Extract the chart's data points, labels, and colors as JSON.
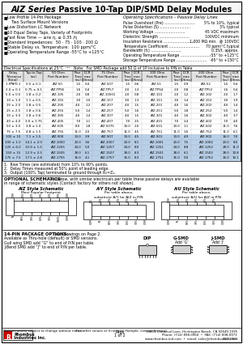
{
  "title_italic": "AIZ Series",
  "title_rest": " Passive 10-Tap DIP/SMD Delay Modules",
  "features": [
    "Low Profile 14-Pin Package",
    "  Two Surface Mount Versions",
    "Low Distortion LC Network",
    "10 Equal Delay Taps, Variety of Footprints",
    "Fast Rise Time — ≤ns η, ≤ 0.35 /η",
    "Standard Impedances:  50 · 75 · 100 · 200 Ω",
    "Stable Delay vs. Temperature:  100 ppm/°C",
    "Operating Temperature Range -55°C to +125°C"
  ],
  "feature_sub": [
    false,
    true,
    false,
    false,
    false,
    false,
    false,
    false
  ],
  "op_specs_title": "Operating Specifications – Passive Delay Lines",
  "op_specs": [
    [
      "Pulse Overshoot (Pre) ",
      "5% to 10%, typical"
    ],
    [
      "Pulse Distortion (S) ",
      "3% typical"
    ],
    [
      "Working Voltage ",
      "45 VDC maximum"
    ],
    [
      "Dielectric Strength ",
      "100VDC minimum"
    ],
    [
      "Insulation Resistance ",
      "1,000 MΩ min.  @ 100VDC"
    ],
    [
      "Temperature Coefficient ",
      "70 ppm/°C typical"
    ],
    [
      "Bandwidth (f₂) ",
      "0.35/t, approx."
    ],
    [
      "Operating Temperature Range ",
      "-55° to +125°C"
    ],
    [
      "Storage Temperature Range ",
      "-65° to +150°C"
    ]
  ],
  "elec_spec_note": "Electrical Specifications at 25°C  ¹²³   Note:  For SMD Package add 50 Ω of 1P inclusive to P/N in Table",
  "col_headers": [
    "Delay\nTolerance\n(Total)\n(ns)",
    "Tap-to-Tap\n(ns)",
    "50 Ohm\nPart Number",
    "Rise\nTime\n(ns)",
    "DCR\nmax\n(Ohms)",
    "75 Ohm\nPart Number",
    "Rise\nTime\n(ns)",
    "DCR\nmax\n(Ohms)",
    "100 Ohm\nPart Number",
    "Rise\nTime\n(ns)",
    "DCR\nmax\n(Ohms)",
    "200 Ohm\nPart Number",
    "Rise\nTime\n(ns)",
    "DCR\nmax\n(Ohms)"
  ],
  "table_rows": [
    [
      "1.0 ± 0.1",
      "0.5 ± 0.1",
      "AIZ-50",
      "1.5",
      "0.4",
      "AIZ-507",
      "1.5",
      "0.6",
      "AIZ-51",
      "1.5",
      "0.9",
      "AIZ-52",
      "1.5",
      "0.4"
    ],
    [
      "2.0 ± 0.1",
      "0.75 ± 0.1",
      "AIZ-TPS5",
      "1.6",
      "0.4",
      "AIZ-TP57",
      "2.0",
      "1.3",
      "AIZ-TPS4",
      "2.0",
      "0.8",
      "AIZ-TP52",
      "1.6",
      "0.4"
    ],
    [
      "5.0 ± 0.5",
      "1.8 ± 0.2",
      "AIZ-105",
      "2.0",
      "0.8",
      "AIZ-10501",
      "2.0",
      "0.8",
      "AIZ-101",
      "2.0",
      "1.2",
      "AIZ-102",
      "2.0",
      "1.7"
    ],
    [
      "10 ± 1.0",
      "1.1 ± 0.5",
      "AIZ-155",
      "3.0",
      "1.0",
      "AIZ-157",
      "3.0",
      "1.3",
      "AIZ-151",
      "3.0",
      "1.4",
      "AIZ-152",
      "3.0",
      "1.9"
    ],
    [
      "20 ± 2.0",
      "1.8 ± 0.5",
      "AIZ-205",
      "4.0",
      "1.2",
      "AIZ-207",
      "4.0",
      "1.5",
      "AIZ-201",
      "4.0",
      "1.6",
      "AIZ-202",
      "4.0",
      "1.4"
    ],
    [
      "25 ± 2.5",
      "1.8 ± 0.6",
      "AIZ-255",
      "5.0",
      "1.4",
      "AIZ-257",
      "5.0",
      "1.6",
      "AIZ-251",
      "5.0",
      "1.8",
      "AIZ-252",
      "5.0",
      "1.4"
    ],
    [
      "30 ± 3.0",
      "1.8 ± 0.6",
      "AIZ-305",
      "4.0",
      "1.4",
      "AIZ-307",
      "4.0",
      "1.5",
      "AIZ-301",
      "4.0",
      "1.6",
      "AIZ-302",
      "4.0",
      "3.7"
    ],
    [
      "40 ± 4.0",
      "3.0 ± 1.75",
      "AIZ-405",
      "7.0",
      "1.1",
      "AIZ-407",
      "7.0",
      "2.5",
      "AIZ-401",
      "7.0",
      "2.4",
      "AIZ-402",
      "7.0",
      "4.0"
    ],
    [
      "50 ± 3.0",
      "3.8 ± 1.0",
      "AIZ-505",
      "8.0",
      "1.8",
      "AIZ-5075",
      "10.0",
      "2.0",
      "AIZ-501",
      "10.0",
      "1.1",
      "AIZ-502",
      "11.0",
      "7.6"
    ],
    [
      "75 ± 7.5",
      "4.8 ± 1.5",
      "AIZ-755",
      "11.0",
      "2.0",
      "AIZ-757",
      "11.0",
      "4.5",
      "AIZ-751",
      "11.0",
      "1.6",
      "AIZ-752",
      "11.0",
      "6.1"
    ],
    [
      "100 ± 10",
      "7.1 ± 1.5",
      "AIZ-900",
      "13.0",
      "3.9",
      "AIZ-907",
      "13.0",
      "4.5",
      "AIZ-901",
      "13.0",
      "4.9",
      "AIZ-902",
      "16.0",
      "7.0"
    ],
    [
      "100 ± 1.0",
      "14.1 ± 2.0",
      "AIZ-1000",
      "20.0",
      "3.6",
      "AIZ-1007",
      "20.0",
      "8.1",
      "AIZ-1001",
      "20.0",
      "7.5",
      "AIZ-1002",
      "20.0",
      "8.0"
    ],
    [
      "125 ± 6.0",
      "10.9 ± 1.5",
      "AIZ-1255",
      "24.0",
      "5.0",
      "AIZ-1257",
      "24.0",
      "8.0",
      "AIZ-1251",
      "24.0",
      "8.8",
      "AIZ-1252",
      "28.0",
      "11.0"
    ],
    [
      "150 ± 15",
      "12.9 ± 2.5",
      "AIZ-1505",
      "28.0",
      "6.1",
      "AIZ-1507",
      "28.0",
      "8.3",
      "AIZ-1501",
      "28.0",
      "6.1",
      "AIZ-1502",
      "28.0",
      "10.8"
    ],
    [
      "175 ± 7.5",
      "17.5 ± 2.8",
      "AIZ-1755",
      "35.0",
      "4.1",
      "AIZ-1757",
      "35.0",
      "8.3",
      "AIZ-1751",
      "35.0",
      "0.0",
      "AIZ-1752",
      "35.0",
      "10.1"
    ]
  ],
  "highlight_rows": [
    10,
    11,
    12,
    13,
    14
  ],
  "highlight_color": "#b8d0e8",
  "table_footnotes": [
    "1.  Rise Times (are estimated) from 10% to 90% points.",
    "2.  Delay Times measured at 50% point of leading edge.",
    "3.  Output (100% Tap) terminated to ground through R₂=Zₒ."
  ],
  "opt_schematic_bold": "OPTIONAL SCHEMATICS:",
  "opt_schematic_rest": "  As below, with similar electricals per table these passive delays are available",
  "opt_schematic_line2": "in range of schematic styles (Contact factory for others not shown).",
  "sch_titles": [
    [
      "AIZ Style Schematic",
      "Most Popular Footprint"
    ],
    [
      "A/Y Style Schematic",
      "Per table above,",
      "substitute A/Y for AIZ in P/N"
    ],
    [
      "A/U Style Schematic",
      "Per table above,",
      "substitute A/U for AIZ in P/N"
    ]
  ],
  "sch_top_labels": [
    [
      "COM",
      "10%",
      "20%",
      "30%",
      "40%",
      "50%",
      "COM"
    ],
    [
      "R/C",
      "10%",
      "20%",
      "30%",
      "40%",
      "50%",
      ""
    ],
    [
      "COM",
      "10%",
      "20%",
      "30%",
      "40%",
      "50%",
      ""
    ]
  ],
  "sch_bot_labels": [
    [
      "IN",
      "60%",
      "70%",
      "80%",
      "90%",
      "100%",
      "COM"
    ],
    [
      "COM",
      "IN",
      "60%",
      "70%",
      "80%",
      "90%",
      "COM"
    ],
    [
      "COM",
      "IN",
      "60%",
      "70%",
      "80%",
      "90%",
      "COM"
    ]
  ],
  "pkg_bold": "14-PIN PACKAGE OPTIONS:",
  "pkg_rest": "  See Drawings on Page 2.",
  "pkg_lines": [
    "Available as Thru-hole (default) or SMD versions.",
    "Gull wing SMD add “G” to end of P/N per table.",
    "J-Bend SMD add “J” to end of P/N per table."
  ],
  "pkg_labels": [
    "DIP",
    "G-SMD",
    "J-SMD"
  ],
  "pkg_sublabels": [
    "",
    "Add 'G'",
    "Add 'J'"
  ],
  "footer_note1": "Specifications subject to change without notice.",
  "footer_note2": "For other values or if needed (Sample, contact factory).",
  "footer_partnum": "AIZ 2001",
  "footer_page": "Page",
  "footer_page2": "1 of 2",
  "footer_company1": "Rhombus",
  "footer_company2": "Industries Inc.",
  "footer_addr": "19801 Chemical Lane, Huntington Beach, CA 92649-1595",
  "footer_phone": "Phone: (714) 898-0960  •  FAX: (714) 898-0971",
  "footer_web": "www.rhombus-ind.com  •  email: sales@rhombus-ind.com"
}
